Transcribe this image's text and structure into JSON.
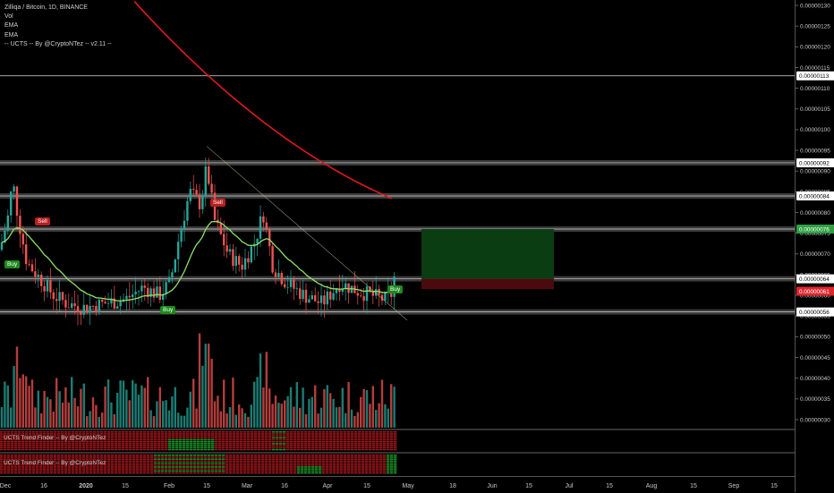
{
  "legend": {
    "title": "Zilliqa / Bitcoin, 1D, BINANCE",
    "lines": [
      "Vol",
      "EMA",
      "EMA",
      "-- UCTS -- By @CryptoNTez -- v2.11 --"
    ]
  },
  "signals": [
    {
      "text": "Buy",
      "kind": "buy"
    },
    {
      "text": "Sell",
      "kind": "sell"
    },
    {
      "text": "Sell",
      "kind": "sell"
    },
    {
      "text": "Buy",
      "kind": "buy"
    },
    {
      "text": "Buy",
      "kind": "buy"
    }
  ],
  "panes": [
    "UCTS Trend Finder -- By @CryptoNTez",
    "UCTS Trend Finder -- By @CryptoNTez"
  ],
  "price_scale": {
    "ticks": [
      "0.00000130",
      "0.00000125",
      "0.00000120",
      "0.00000115",
      "0.00000110",
      "0.00000105",
      "0.00000100",
      "0.00000095",
      "0.00000090",
      "0.00000085",
      "0.00000080",
      "0.00000075",
      "0.00000070",
      "0.00000065",
      "0.00000060",
      "0.00000055",
      "0.00000050",
      "0.00000045",
      "0.00000040",
      "0.00000035",
      "0.00000030"
    ],
    "tags": [
      {
        "text": "0.00000113",
        "bg": "#ffffff",
        "fg": "#000000"
      },
      {
        "text": "0.00000092",
        "bg": "#ffffff",
        "fg": "#000000"
      },
      {
        "text": "0.00000084",
        "bg": "#ffffff",
        "fg": "#000000"
      },
      {
        "text": "0.00000076",
        "bg": "#2ea043",
        "fg": "#ffffff"
      },
      {
        "text": "0.00000064",
        "bg": "#ffffff",
        "fg": "#000000"
      },
      {
        "text": "0.00000061",
        "bg": "#e0262d",
        "fg": "#ffffff"
      },
      {
        "text": "0.00000056",
        "bg": "#ffffff",
        "fg": "#000000"
      }
    ]
  },
  "time_axis": {
    "labels": [
      "Dec",
      "16",
      "2020",
      "15",
      "Feb",
      "15",
      "Mar",
      "16",
      "Apr",
      "15",
      "May",
      "18",
      "Jun",
      "15",
      "Jul",
      "15",
      "Aug",
      "15",
      "Sep",
      "15"
    ]
  },
  "colors": {
    "bull": "#26a69a",
    "bear": "#ef5350",
    "ema_long": "#e0191e",
    "ema_short": "#8ee06a",
    "zone": "#6b6b6b",
    "target_box": "#0b3d12",
    "stop_box": "#4a0b0f"
  },
  "chart_data": {
    "type": "candlestick",
    "symbol": "Zilliqa / Bitcoin",
    "interval": "1D",
    "exchange": "BINANCE",
    "price_unit": "BTC",
    "visible_price_range": [
      2.6e-07,
      1.32e-06
    ],
    "horizontal_levels": [
      1.13e-06,
      9.2e-07,
      8.4e-07,
      7.6e-07,
      6.4e-07,
      5.6e-07
    ],
    "key_points": {
      "dec_high": 9.35e-07,
      "feb_high": 9.55e-07,
      "jan_low": 5.55e-07,
      "last_close": 6.6e-07
    },
    "ema_long_points": [
      [
        1.3e-06,
        "early-Feb"
      ],
      [
        8.35e-07,
        "end-Apr"
      ]
    ],
    "position_box": {
      "target": 7.6e-07,
      "entry": 6.4e-07,
      "stop": 6.1e-07
    },
    "grid": false
  }
}
